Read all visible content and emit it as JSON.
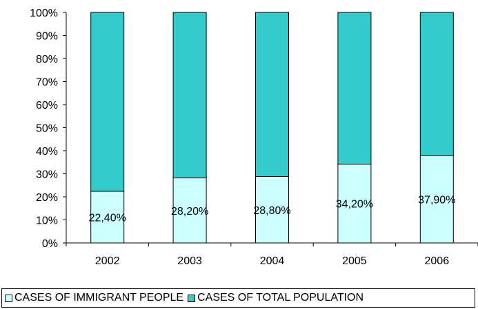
{
  "chart_data": {
    "type": "bar",
    "stacked": true,
    "percent_stacked": true,
    "categories": [
      "2002",
      "2003",
      "2004",
      "2005",
      "2006"
    ],
    "series": [
      {
        "name": "CASES OF IMMIGRANT PEOPLE",
        "values": [
          22.4,
          28.2,
          28.8,
          34.2,
          37.9
        ],
        "labels": [
          "22,40%",
          "28,20%",
          "28,80%",
          "34,20%",
          "37,90%"
        ],
        "color": "#CCFFFF"
      },
      {
        "name": "CASES OF TOTAL POPULATION",
        "values": [
          77.6,
          71.8,
          71.2,
          65.8,
          62.1
        ],
        "color": "#33CCCC"
      }
    ],
    "ylim": [
      0,
      100
    ],
    "yticks": [
      "0%",
      "10%",
      "20%",
      "30%",
      "40%",
      "50%",
      "60%",
      "70%",
      "80%",
      "90%",
      "100%"
    ],
    "grid": false,
    "legend_position": "bottom"
  }
}
